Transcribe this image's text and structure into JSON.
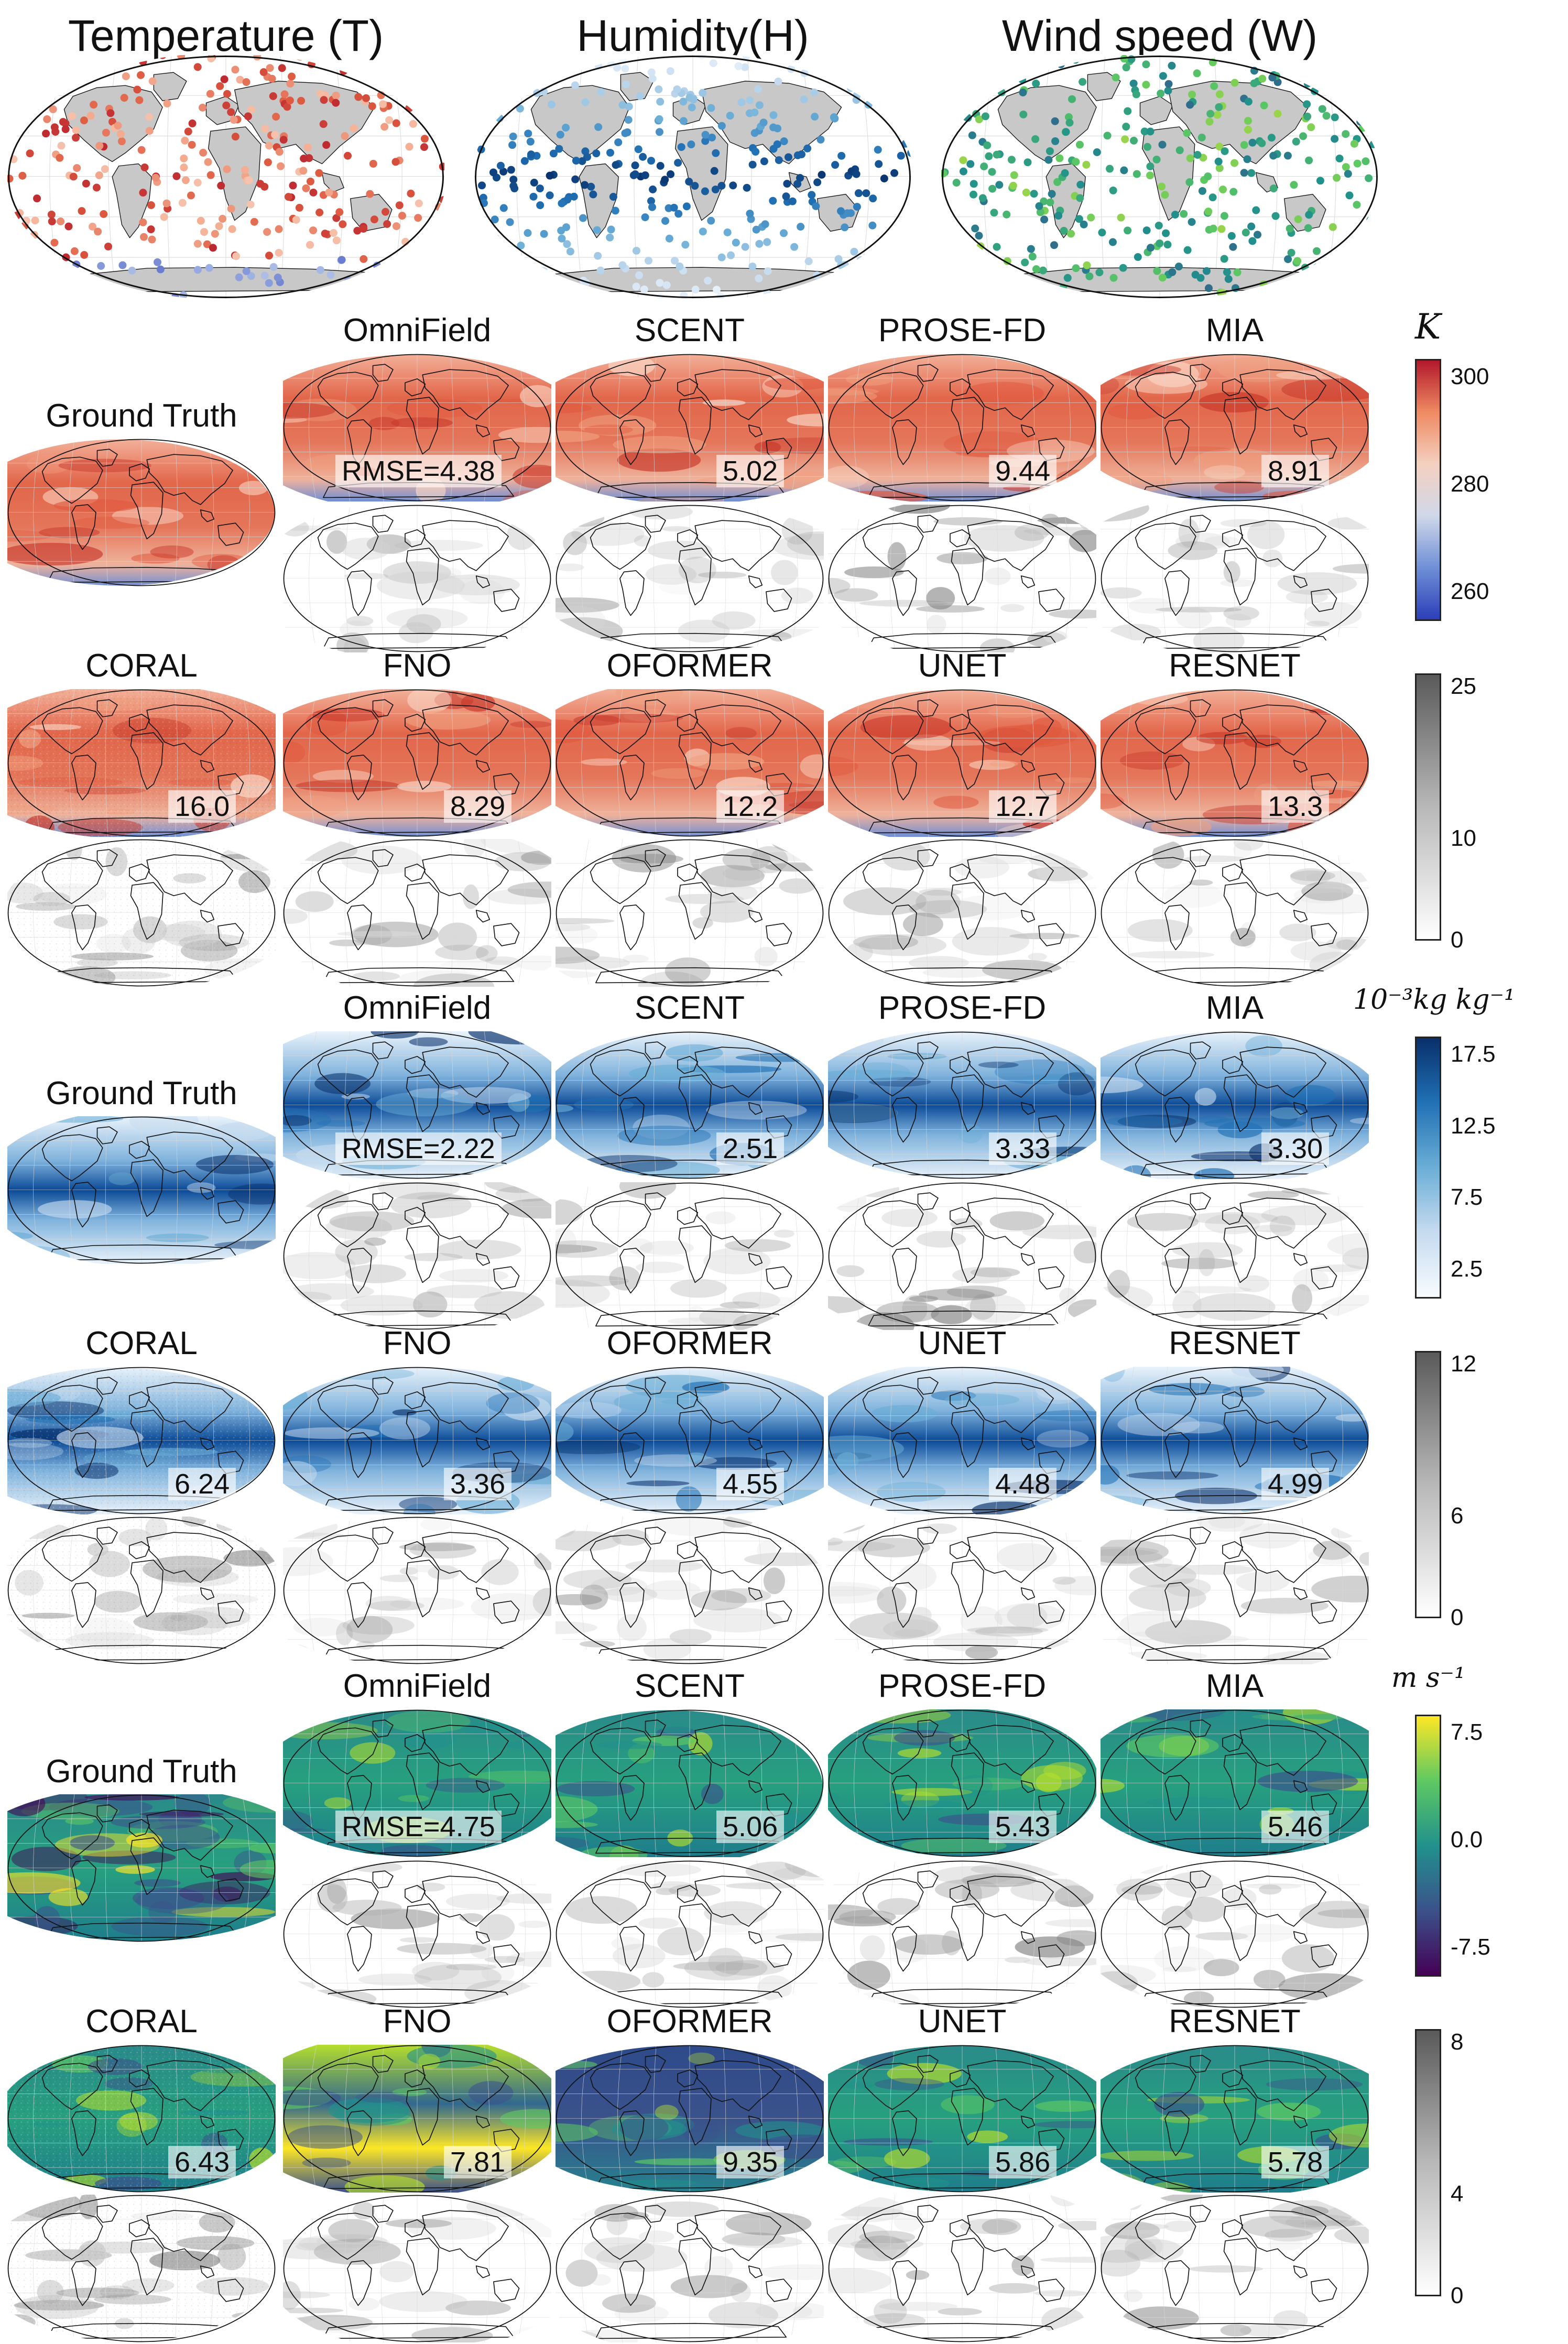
{
  "figure": {
    "top_titles": [
      "Temperature (T)",
      "Humidity(H)",
      "Wind speed (W)"
    ],
    "variables": [
      {
        "key": "temperature",
        "ground_truth_label": "Ground Truth",
        "rmse_prefix": "RMSE=",
        "models_row1": [
          {
            "name": "OmniField",
            "rmse": "4.38"
          },
          {
            "name": "SCENT",
            "rmse": "5.02"
          },
          {
            "name": "PROSE-FD",
            "rmse": "9.44"
          },
          {
            "name": "MIA",
            "rmse": "8.91"
          }
        ],
        "models_row2": [
          {
            "name": "CORAL",
            "rmse": "16.0"
          },
          {
            "name": "FNO",
            "rmse": "8.29"
          },
          {
            "name": "OFORMER",
            "rmse": "12.2"
          },
          {
            "name": "UNET",
            "rmse": "12.7"
          },
          {
            "name": "RESNET",
            "rmse": "13.3"
          }
        ],
        "value_colorbar": {
          "unit": "K",
          "ticks": [
            "300",
            "280",
            "260"
          ],
          "colors": [
            "#b2182b",
            "#ef8a62",
            "#f4d0c0",
            "#d0d8ea",
            "#6f8fd6",
            "#2c3fb8"
          ]
        },
        "error_colorbar": {
          "ticks": [
            "25",
            "10",
            "0"
          ]
        }
      },
      {
        "key": "humidity",
        "ground_truth_label": "Ground Truth",
        "rmse_prefix": "RMSE=",
        "models_row1": [
          {
            "name": "OmniField",
            "rmse": "2.22"
          },
          {
            "name": "SCENT",
            "rmse": "2.51"
          },
          {
            "name": "PROSE-FD",
            "rmse": "3.33"
          },
          {
            "name": "MIA",
            "rmse": "3.30"
          }
        ],
        "models_row2": [
          {
            "name": "CORAL",
            "rmse": "6.24"
          },
          {
            "name": "FNO",
            "rmse": "3.36"
          },
          {
            "name": "OFORMER",
            "rmse": "4.55"
          },
          {
            "name": "UNET",
            "rmse": "4.48"
          },
          {
            "name": "RESNET",
            "rmse": "4.99"
          }
        ],
        "value_colorbar": {
          "unit": "10⁻³kg kg⁻¹",
          "ticks": [
            "17.5",
            "12.5",
            "7.5",
            "2.5"
          ],
          "colors": [
            "#08306b",
            "#2171b5",
            "#6baed6",
            "#c6dbef",
            "#f7fbff"
          ]
        },
        "error_colorbar": {
          "ticks": [
            "12",
            "6",
            "0"
          ]
        }
      },
      {
        "key": "wind",
        "ground_truth_label": "Ground Truth",
        "rmse_prefix": "RMSE=",
        "models_row1": [
          {
            "name": "OmniField",
            "rmse": "4.75"
          },
          {
            "name": "SCENT",
            "rmse": "5.06"
          },
          {
            "name": "PROSE-FD",
            "rmse": "5.43"
          },
          {
            "name": "MIA",
            "rmse": "5.46"
          }
        ],
        "models_row2": [
          {
            "name": "CORAL",
            "rmse": "6.43"
          },
          {
            "name": "FNO",
            "rmse": "7.81"
          },
          {
            "name": "OFORMER",
            "rmse": "9.35"
          },
          {
            "name": "UNET",
            "rmse": "5.86"
          },
          {
            "name": "RESNET",
            "rmse": "5.78"
          }
        ],
        "value_colorbar": {
          "unit": "m s⁻¹",
          "ticks": [
            "7.5",
            "0.0",
            "-7.5"
          ],
          "colors": [
            "#fde725",
            "#5ec962",
            "#21918c",
            "#3b528b",
            "#440154"
          ]
        },
        "error_colorbar": {
          "ticks": [
            "8",
            "4",
            "0"
          ]
        }
      }
    ]
  }
}
